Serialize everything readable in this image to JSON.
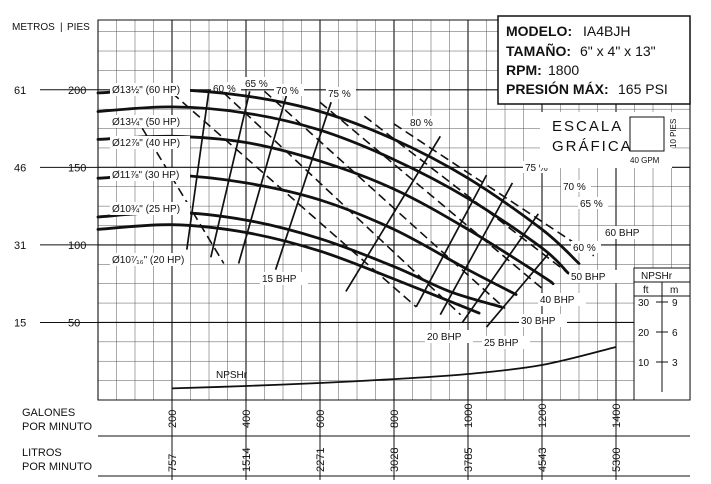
{
  "chart_data": {
    "type": "line",
    "title": "",
    "axes": {
      "left_unit_a": "METROS",
      "left_unit_b": "PIES",
      "head_ft_ticks": [
        200,
        150,
        100,
        50
      ],
      "head_m_ticks": [
        61,
        46,
        31,
        15
      ],
      "gpm_label_1": "GALONES",
      "gpm_label_2": "POR MINUTO",
      "gpm_ticks": [
        200,
        400,
        600,
        800,
        1000,
        1200,
        1400
      ],
      "lpm_label_1": "LITROS",
      "lpm_label_2": "POR MINUTO",
      "lpm_ticks": [
        757,
        1514,
        2271,
        3028,
        3785,
        4543,
        5300
      ],
      "xlim_gpm": [
        0,
        1600
      ],
      "ylim_ft": [
        0,
        245
      ],
      "grid": true
    },
    "info": {
      "model_label": "MODELO:",
      "model_value": "IA4BJH",
      "size_label": "TAMAÑO:",
      "size_value": "6\" x 4\" x 13\"",
      "rpm_label": "RPM:",
      "rpm_value": "1800",
      "pressure_label": "PRESIÓN MÁX:",
      "pressure_value": "165 PSI"
    },
    "scale": {
      "line1": "ESCALA",
      "line2": "GRÁFICA",
      "x_unit": "40 GPM",
      "y_unit": "10 PIES"
    },
    "series": [
      {
        "name": "Ø13½\" (60 HP)",
        "x": [
          0,
          200,
          400,
          600,
          800,
          1000,
          1200,
          1300
        ],
        "y": [
          198,
          200,
          196,
          186,
          168,
          143,
          110,
          88
        ]
      },
      {
        "name": "Ø13¼\" (50 HP)",
        "x": [
          0,
          200,
          400,
          600,
          800,
          1000,
          1200,
          1270
        ],
        "y": [
          186,
          189,
          185,
          174,
          155,
          130,
          98,
          82
        ]
      },
      {
        "name": "Ø12⅞\" (40 HP)",
        "x": [
          0,
          200,
          400,
          600,
          800,
          1000,
          1200,
          1230
        ],
        "y": [
          168,
          170,
          166,
          154,
          136,
          110,
          80,
          75
        ]
      },
      {
        "name": "Ø11⅞\" (30 HP)",
        "x": [
          0,
          200,
          400,
          600,
          800,
          1000,
          1130
        ],
        "y": [
          143,
          145,
          140,
          129,
          110,
          84,
          68
        ]
      },
      {
        "name": "Ø10¾\" (25 HP)",
        "x": [
          0,
          200,
          400,
          600,
          800,
          950,
          1090
        ],
        "y": [
          118,
          121,
          116,
          104,
          86,
          70,
          60
        ]
      },
      {
        "name": "Ø10⁷⁄₁₆\" (20 HP)",
        "x": [
          0,
          200,
          400,
          600,
          800,
          1030
        ],
        "y": [
          110,
          113,
          108,
          96,
          78,
          56
        ]
      }
    ],
    "efficiency_lines": [
      {
        "label": "60 %",
        "x": [
          240,
          300
        ],
        "y": [
          97,
          200
        ]
      },
      {
        "label": "65 %",
        "x": [
          305,
          410
        ],
        "y": [
          92,
          199
        ]
      },
      {
        "label": "70 %",
        "x": [
          380,
          510
        ],
        "y": [
          88,
          197
        ]
      },
      {
        "label": "75 %",
        "x": [
          480,
          630
        ],
        "y": [
          84,
          192
        ]
      }
    ],
    "efficiency_lines_right": [
      {
        "label": "80 %",
        "x": [
          670,
          925
        ],
        "y": [
          70,
          170
        ]
      },
      {
        "label": "75 %",
        "x": [
          860,
          1050
        ],
        "y": [
          60,
          145
        ]
      },
      {
        "label": "70 %",
        "x": [
          925,
          1120
        ],
        "y": [
          55,
          140
        ]
      },
      {
        "label": "65 %",
        "x": [
          985,
          1190
        ],
        "y": [
          50,
          120
        ]
      },
      {
        "label": "60 %",
        "x": [
          1050,
          1220
        ],
        "y": [
          47,
          95
        ]
      }
    ],
    "bhp_lines": [
      {
        "label": "15 BHP",
        "x": [
          100,
          340
        ],
        "y": [
          183,
          88
        ]
      },
      {
        "label": "20 BHP",
        "x": [
          200,
          860
        ],
        "y": [
          198,
          60
        ]
      },
      {
        "label": "25 BHP",
        "x": [
          340,
          980
        ],
        "y": [
          198,
          55
        ]
      },
      {
        "label": "30 BHP",
        "x": [
          450,
          1100
        ],
        "y": [
          199,
          59
        ]
      },
      {
        "label": "40 BHP",
        "x": [
          600,
          1200
        ],
        "y": [
          192,
          72
        ]
      },
      {
        "label": "50 BHP",
        "x": [
          720,
          1280
        ],
        "y": [
          183,
          80
        ]
      },
      {
        "label": "60 BHP",
        "x": [
          800,
          1340
        ],
        "y": [
          178,
          93
        ]
      }
    ],
    "npshr": {
      "title": "NPSHr",
      "col_ft": "ft",
      "col_m": "m",
      "ft_ticks": [
        30,
        20,
        10
      ],
      "m_ticks": [
        9,
        6,
        3
      ],
      "series_name": "NPSHr",
      "x": [
        200,
        400,
        600,
        800,
        1000,
        1200,
        1400
      ],
      "y_ft": [
        1.2,
        2.0,
        3.0,
        4.3,
        6.0,
        9.0,
        15.0
      ]
    }
  }
}
